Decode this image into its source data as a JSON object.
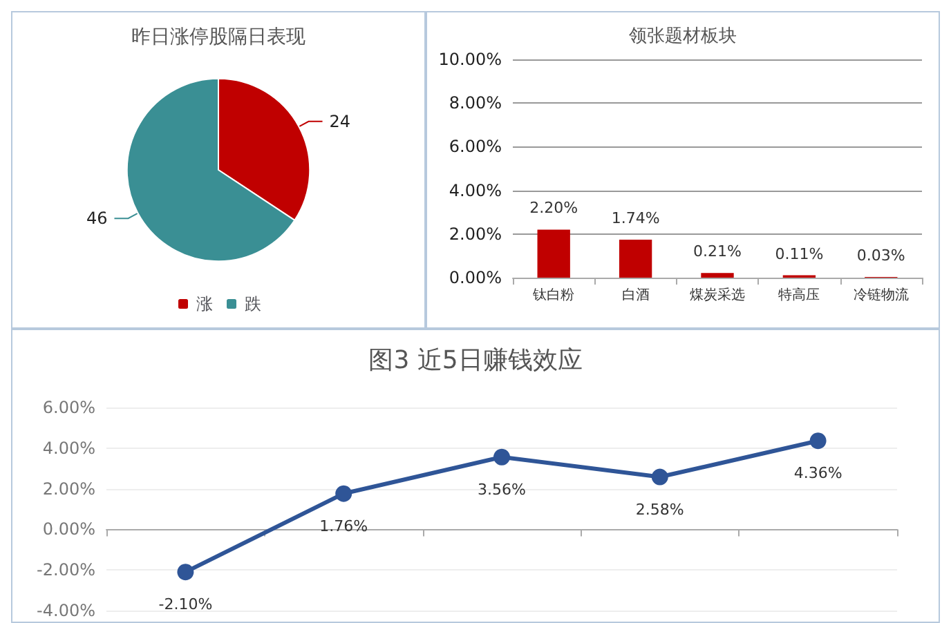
{
  "chart_data": [
    {
      "type": "pie",
      "title": "昨日涨停股隔日表现",
      "categories": [
        "涨",
        "跌"
      ],
      "values": [
        24,
        46
      ],
      "colors": [
        "#c00000",
        "#3a8f94"
      ],
      "data_labels": true,
      "legend": "bottom"
    },
    {
      "type": "bar",
      "title": "领张题材板块",
      "categories": [
        "钛白粉",
        "白酒",
        "煤炭采选",
        "特高压",
        "冷链物流"
      ],
      "values": [
        2.2,
        1.74,
        0.21,
        0.11,
        0.03
      ],
      "value_labels": [
        "2.20%",
        "1.74%",
        "0.21%",
        "0.11%",
        "0.03%"
      ],
      "color": "#c00000",
      "ylim": [
        0,
        10
      ],
      "yticks": [
        {
          "value": 0,
          "label": "0.00%"
        },
        {
          "value": 2,
          "label": "2.00%"
        },
        {
          "value": 4,
          "label": "4.00%"
        },
        {
          "value": 6,
          "label": "6.00%"
        },
        {
          "value": 8,
          "label": "8.00%"
        },
        {
          "value": 10,
          "label": "10.00%"
        }
      ],
      "grid": "y"
    },
    {
      "type": "line",
      "title": "图3 近5日赚钱效应",
      "categories": [
        null,
        null,
        null,
        null,
        null
      ],
      "values": [
        -2.1,
        1.76,
        3.56,
        2.58,
        4.36
      ],
      "value_labels": [
        "-2.10%",
        "1.76%",
        "3.56%",
        "2.58%",
        "4.36%"
      ],
      "color": "#2f5597",
      "marker": "circle",
      "ylim": [
        -4,
        6
      ],
      "yticks": [
        {
          "value": -4,
          "label": "-4.00%"
        },
        {
          "value": -2,
          "label": "-2.00%"
        },
        {
          "value": 0,
          "label": "0.00%"
        },
        {
          "value": 2,
          "label": "2.00%"
        },
        {
          "value": 4,
          "label": "4.00%"
        },
        {
          "value": 6,
          "label": "6.00%"
        }
      ],
      "grid": "y"
    }
  ]
}
